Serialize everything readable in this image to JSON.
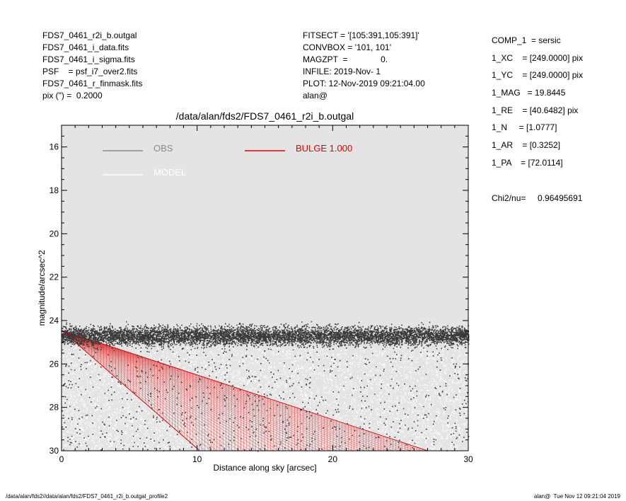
{
  "header_left": [
    "FDS7_0461_r2i_b.outgal",
    "FDS7_0461_i_data.fits",
    "FDS7_0461_i_sigma.fits",
    "PSF    = psf_i7_over2.fits",
    "FDS7_0461_r_finmask.fits",
    "pix (\") =  0.2000"
  ],
  "header_mid": [
    "FITSECT = '[105:391,105:391]'",
    "CONVBOX = '101, 101'",
    "MAGZPT  =              0.",
    "INFILE: 2019-Nov- 1",
    "PLOT: 12-Nov-2019 09:21:04.00",
    "alan@"
  ],
  "params": [
    "COMP_1  = sersic",
    "1_XC    = [249.0000] pix",
    "1_YC    = [249.0000] pix",
    "1_MAG   = 19.8445",
    "1_RE    = [40.6482] pix",
    "1_N     = [1.0777]",
    "1_AR    = [0.3252]",
    "1_PA    = [72.0114]"
  ],
  "chi2": "Chi2/nu=     0.96495691",
  "footer_left": "/data/alan/fds2//data/alan/fds2/FDS7_0461_r2i_b.outgal_profile2",
  "footer_right": "alan@  Tue Nov 12 09:21:04 2019",
  "colors": {
    "plot_bg": "#e4e4e4",
    "obs_points": "#3a3a3a",
    "model_points": "#ffffff",
    "bulge": "#e00000",
    "obs_legend": "#8a8a8a"
  },
  "chart_data": {
    "type": "scatter",
    "title": "/data/alan/fds2/FDS7_0461_r2i_b.outgal",
    "xlabel": "Distance along sky [arcsec]",
    "ylabel": "magnitude/arcsec^2",
    "xlim": [
      0,
      30
    ],
    "ylim": [
      30,
      15
    ],
    "y_inverted": true,
    "xticks": [
      0,
      10,
      20,
      30
    ],
    "yticks": [
      16,
      18,
      20,
      22,
      24,
      26,
      28,
      30
    ],
    "legend": [
      {
        "name": "OBS",
        "color": "#8a8a8a"
      },
      {
        "name": "MODEL",
        "color": "#ffffff"
      },
      {
        "name": "BULGE  1.000",
        "color": "#e00000"
      }
    ],
    "series": [
      {
        "name": "OBS",
        "description_level": "dense band near sky level",
        "mag_center": 24.7,
        "mag_spread": 0.5,
        "x_range": [
          0,
          30
        ]
      },
      {
        "name": "MODEL",
        "mag_range": [
          25.2,
          30
        ],
        "x_range": [
          0,
          30
        ]
      },
      {
        "name": "BULGE  1.000",
        "boundary_upper": [
          [
            0,
            24.45
          ],
          [
            27,
            30
          ]
        ],
        "boundary_lower": [
          [
            0,
            24.45
          ],
          [
            10.2,
            30
          ]
        ]
      }
    ]
  }
}
